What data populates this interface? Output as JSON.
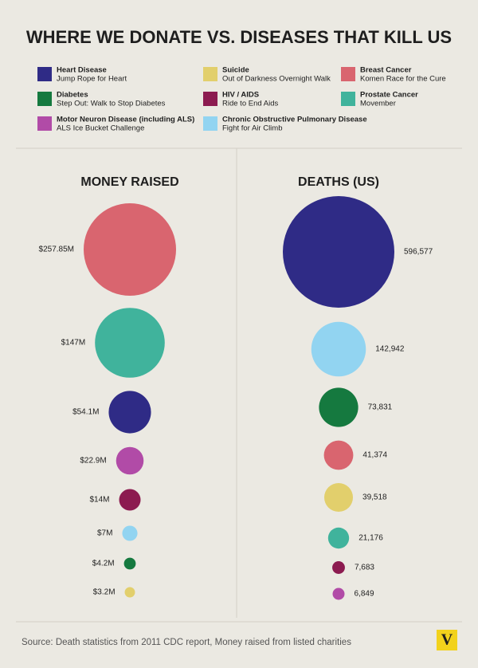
{
  "title": "WHERE WE DONATE VS. DISEASES THAT KILL US",
  "legend": [
    {
      "disease": "Heart Disease",
      "event": "Jump Rope for Heart",
      "color": "#2f2b86"
    },
    {
      "disease": "Diabetes",
      "event": "Step Out: Walk to Stop Diabetes",
      "color": "#15793f"
    },
    {
      "disease": "Motor Neuron Disease (including ALS)",
      "event": "ALS Ice Bucket Challenge",
      "color": "#b14ba7"
    },
    {
      "disease": "Suicide",
      "event": "Out of Darkness Overnight Walk",
      "color": "#e2cf6c"
    },
    {
      "disease": "HIV / AIDS",
      "event": "Ride to End Aids",
      "color": "#8c1b50"
    },
    {
      "disease": "Chronic Obstructive Pulmonary Disease",
      "event": "Fight for Air Climb",
      "color": "#92d4f1"
    },
    {
      "disease": "Breast Cancer",
      "event": "Komen Race for the Cure",
      "color": "#d9656f"
    },
    {
      "disease": "Prostate Cancer",
      "event": "Movember",
      "color": "#40b39c"
    }
  ],
  "chart_data": [
    {
      "type": "bubble",
      "title": "MONEY RAISED",
      "values": [
        257.85,
        147,
        54.1,
        22.9,
        14,
        7,
        4.2,
        3.2
      ],
      "value_labels": [
        "$257.85M",
        "$147M",
        "$54.1M",
        "$22.9M",
        "$14M",
        "$7M",
        "$4.2M",
        "$3.2M"
      ],
      "colors": [
        "#d9656f",
        "#40b39c",
        "#2f2b86",
        "#b14ba7",
        "#8c1b50",
        "#92d4f1",
        "#15793f",
        "#e2cf6c"
      ]
    },
    {
      "type": "bubble",
      "title": "DEATHS (US)",
      "values": [
        596577,
        142942,
        73831,
        41374,
        39518,
        21176,
        7683,
        6849
      ],
      "value_labels": [
        "596,577",
        "142,942",
        "73,831",
        "41,374",
        "39,518",
        "21,176",
        "7,683",
        "6,849"
      ],
      "colors": [
        "#2f2b86",
        "#92d4f1",
        "#15793f",
        "#d9656f",
        "#e2cf6c",
        "#40b39c",
        "#8c1b50",
        "#b14ba7"
      ]
    }
  ],
  "source": "Source: Death statistics from 2011 CDC report, Money raised from listed charities",
  "logo": "V"
}
